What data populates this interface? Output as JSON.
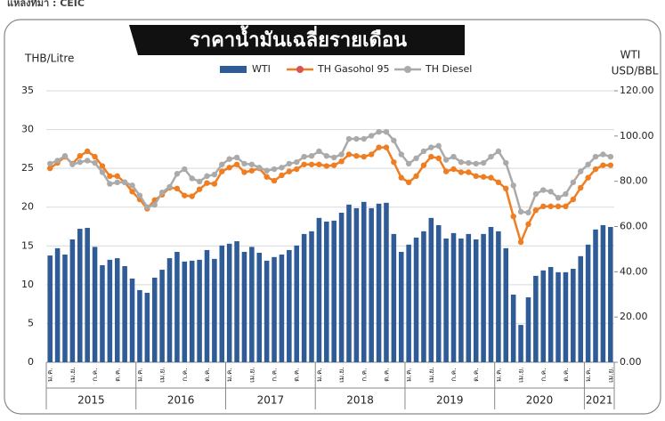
{
  "source": "แหล่งที่มา : CEIC",
  "chart_data": {
    "type": "bar_line",
    "title": "ราคาน้ำมันเฉลี่ยรายเดือน",
    "y_label": "THB/Litre",
    "y2_label": [
      "WTI",
      "USD/BBL"
    ],
    "ylim": [
      0,
      35
    ],
    "yticks": [
      0,
      5,
      10,
      15,
      20,
      25,
      30,
      35
    ],
    "y2lim": [
      0,
      120
    ],
    "y2ticks": [
      {
        "value": 0,
        "label": "0.00"
      },
      {
        "value": 20,
        "label": "20.00"
      },
      {
        "value": 40,
        "label": "40.00"
      },
      {
        "value": 60,
        "label": "60.00"
      },
      {
        "value": 80,
        "label": "80.00"
      },
      {
        "value": 100,
        "label": "100.00"
      },
      {
        "value": 120,
        "label": "120.00"
      }
    ],
    "grid": true,
    "years": [
      "2015",
      "2016",
      "2017",
      "2018",
      "2019",
      "2020",
      "2021"
    ],
    "categories": [
      "ม.ค.",
      null,
      null,
      "เม.ย.",
      null,
      null,
      "ก.ค.",
      null,
      null,
      "ต.ค.",
      null,
      null,
      "ม.ค.",
      null,
      null,
      "เม.ย.",
      null,
      null,
      "ก.ค.",
      null,
      null,
      "ต.ค.",
      null,
      null,
      "ม.ค.",
      null,
      null,
      "เม.ย.",
      null,
      null,
      "ก.ค.",
      null,
      null,
      "ต.ค.",
      null,
      null,
      "ม.ค.",
      null,
      null,
      "เม.ย.",
      null,
      null,
      "ก.ค.",
      null,
      null,
      "ต.ค.",
      null,
      null,
      "ม.ค.",
      null,
      null,
      "เม.ย.",
      null,
      null,
      "ก.ค.",
      null,
      null,
      "ต.ค.",
      null,
      null,
      "ม.ค.",
      null,
      null,
      "เม.ย.",
      null,
      null,
      "ก.ค.",
      null,
      null,
      "ต.ค.",
      null,
      null,
      "ม.ค.",
      null,
      null,
      "เม.ย."
    ],
    "series": [
      {
        "name": "WTI",
        "type": "bar",
        "axis": "y2",
        "color": "#2f5c97",
        "values": [
          47.2,
          50.4,
          47.6,
          54.3,
          59.0,
          59.4,
          51.0,
          42.9,
          45.3,
          46.0,
          42.5,
          37.0,
          31.9,
          30.7,
          37.4,
          40.9,
          46.0,
          48.8,
          44.5,
          44.9,
          45.3,
          49.6,
          45.7,
          51.6,
          52.4,
          53.5,
          48.8,
          51.0,
          48.4,
          44.9,
          46.5,
          47.6,
          49.6,
          51.6,
          56.7,
          57.9,
          63.8,
          62.2,
          62.6,
          66.1,
          69.7,
          68.1,
          70.9,
          68.1,
          70.1,
          70.5,
          56.7,
          48.8,
          52.0,
          55.1,
          57.9,
          63.8,
          60.6,
          54.7,
          57.1,
          54.7,
          56.7,
          54.3,
          56.7,
          59.8,
          57.9,
          50.4,
          29.9,
          16.5,
          28.7,
          38.2,
          40.6,
          42.1,
          39.8,
          39.8,
          41.3,
          46.9,
          52.0,
          58.7,
          60.6,
          59.8
        ]
      },
      {
        "name": "TH Gasohol 95",
        "type": "line",
        "color": "#ef7d22",
        "values": [
          25.0,
          25.7,
          26.5,
          25.6,
          26.6,
          27.2,
          26.5,
          25.3,
          24.0,
          24.0,
          23.2,
          22.0,
          21.0,
          19.8,
          20.9,
          21.6,
          22.5,
          22.4,
          21.5,
          21.4,
          22.3,
          23.1,
          23.0,
          24.6,
          25.1,
          25.5,
          24.5,
          24.7,
          25.0,
          23.9,
          23.4,
          24.1,
          24.6,
          24.9,
          25.5,
          25.5,
          25.5,
          25.3,
          25.4,
          25.9,
          26.8,
          26.6,
          26.5,
          26.8,
          27.7,
          27.7,
          25.8,
          23.8,
          23.2,
          24.0,
          25.4,
          26.5,
          26.3,
          24.6,
          24.9,
          24.5,
          24.5,
          24.0,
          23.9,
          23.8,
          23.2,
          22.4,
          18.8,
          15.5,
          17.8,
          19.6,
          20.1,
          20.1,
          20.1,
          20.1,
          21.0,
          22.5,
          23.8,
          24.9,
          25.4,
          25.4
        ]
      },
      {
        "name": "TH Diesel",
        "type": "line",
        "color": "#aaaaaa",
        "values": [
          25.6,
          26.0,
          26.6,
          25.5,
          25.8,
          26.0,
          25.7,
          24.5,
          23.0,
          23.2,
          23.2,
          22.8,
          21.5,
          20.0,
          20.3,
          21.9,
          22.6,
          24.3,
          24.9,
          23.7,
          23.3,
          24.0,
          24.2,
          25.5,
          26.2,
          26.4,
          25.6,
          25.5,
          25.1,
          24.7,
          24.9,
          25.1,
          25.6,
          25.8,
          26.5,
          26.6,
          27.2,
          26.6,
          26.4,
          26.8,
          28.8,
          28.8,
          28.8,
          29.2,
          29.7,
          29.7,
          28.6,
          26.8,
          25.6,
          26.3,
          27.2,
          27.7,
          27.9,
          26.1,
          26.5,
          25.8,
          25.7,
          25.6,
          25.7,
          26.5,
          27.2,
          25.7,
          22.8,
          19.4,
          19.3,
          21.7,
          22.2,
          22.0,
          21.2,
          21.7,
          23.2,
          24.6,
          25.5,
          26.5,
          26.8,
          26.5
        ]
      }
    ]
  }
}
